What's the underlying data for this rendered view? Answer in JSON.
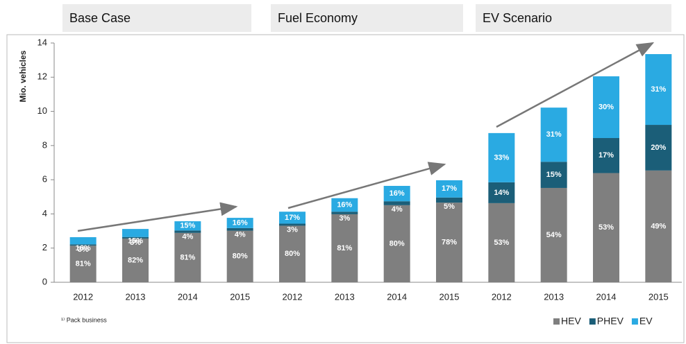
{
  "chart_data": {
    "type": "stacked_bar",
    "group_labels": [
      "Base Case",
      "Fuel Economy",
      "EV Scenario"
    ],
    "ylabel": "Mio. vehicles",
    "footnote": "¹⁾ Pack business",
    "categories": [
      "2012",
      "2013",
      "2014",
      "2015",
      "2012",
      "2013",
      "2014",
      "2015",
      "2012",
      "2013",
      "2014",
      "2015"
    ],
    "series": [
      {
        "name": "HEV",
        "color": "#7f7f7f",
        "values": [
          2.14,
          2.56,
          2.89,
          3.02,
          3.31,
          3.98,
          4.51,
          4.66,
          4.63,
          5.52,
          6.39,
          6.54
        ],
        "labels": [
          "81%",
          "82%",
          "81%",
          "80%",
          "80%",
          "81%",
          "80%",
          "78%",
          "53%",
          "54%",
          "53%",
          "49%"
        ]
      },
      {
        "name": "PHEV",
        "color": "#1b5e78",
        "values": [
          0.08,
          0.09,
          0.14,
          0.15,
          0.12,
          0.15,
          0.23,
          0.3,
          1.22,
          1.53,
          2.05,
          2.67
        ],
        "labels": [
          "3%",
          "3%",
          "4%",
          "4%",
          "3%",
          "3%",
          "4%",
          "5%",
          "14%",
          "15%",
          "17%",
          "20%"
        ]
      },
      {
        "name": "EV",
        "color": "#2aaae2",
        "values": [
          0.42,
          0.47,
          0.54,
          0.6,
          0.7,
          0.79,
          0.9,
          1.01,
          2.88,
          3.17,
          3.61,
          4.14
        ],
        "labels": [
          "16%",
          "15%",
          "15%",
          "16%",
          "17%",
          "16%",
          "16%",
          "17%",
          "33%",
          "31%",
          "30%",
          "31%"
        ]
      }
    ],
    "ylim": [
      0,
      14
    ],
    "yticks": [
      0,
      2,
      4,
      6,
      8,
      10,
      12,
      14
    ],
    "grid": false,
    "legend": "bottom-right"
  }
}
